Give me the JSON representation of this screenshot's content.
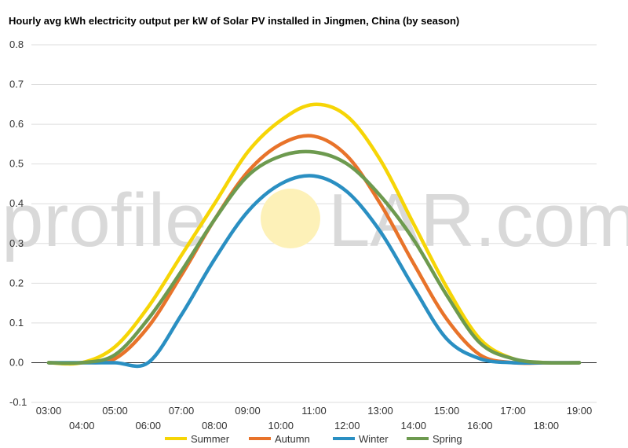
{
  "title": "Hourly avg kWh electricity output per kW of Solar PV installed in Jingmen, China (by season)",
  "watermark": {
    "left": "profile",
    "right": "LAR.com",
    "sun_color": "#fdf1b8"
  },
  "chart_data": {
    "type": "line",
    "title": "Hourly avg kWh electricity output per kW of Solar PV installed in Jingmen, China (by season)",
    "xlabel": "",
    "ylabel": "",
    "ylim": [
      -0.1,
      0.8
    ],
    "yticks": [
      "-0.1",
      "0.0",
      "0.1",
      "0.2",
      "0.3",
      "0.4",
      "0.5",
      "0.6",
      "0.7",
      "0.8"
    ],
    "ytick_values": [
      -0.1,
      0,
      0.1,
      0.2,
      0.3,
      0.4,
      0.5,
      0.6,
      0.7,
      0.8
    ],
    "categories": [
      "03:00",
      "04:00",
      "05:00",
      "06:00",
      "07:00",
      "08:00",
      "09:00",
      "10:00",
      "11:00",
      "12:00",
      "13:00",
      "14:00",
      "15:00",
      "16:00",
      "17:00",
      "18:00",
      "19:00"
    ],
    "grid": true,
    "legend_position": "bottom",
    "series": [
      {
        "name": "Summer",
        "color": "#f6d506",
        "values": [
          0,
          0,
          0.04,
          0.14,
          0.27,
          0.4,
          0.53,
          0.61,
          0.65,
          0.62,
          0.51,
          0.35,
          0.19,
          0.06,
          0.01,
          0,
          0
        ]
      },
      {
        "name": "Autumn",
        "color": "#e8732a",
        "values": [
          0,
          0,
          0.01,
          0.09,
          0.22,
          0.36,
          0.48,
          0.55,
          0.57,
          0.52,
          0.4,
          0.25,
          0.11,
          0.02,
          0,
          0,
          0
        ]
      },
      {
        "name": "Winter",
        "color": "#2a8fc2",
        "values": [
          0,
          0,
          0,
          0,
          0.12,
          0.26,
          0.38,
          0.45,
          0.47,
          0.43,
          0.33,
          0.19,
          0.06,
          0.01,
          0,
          0,
          0
        ]
      },
      {
        "name": "Spring",
        "color": "#6d9a4f",
        "values": [
          0,
          0,
          0.02,
          0.11,
          0.23,
          0.36,
          0.47,
          0.52,
          0.53,
          0.5,
          0.42,
          0.31,
          0.17,
          0.05,
          0.01,
          0,
          0
        ]
      }
    ]
  }
}
